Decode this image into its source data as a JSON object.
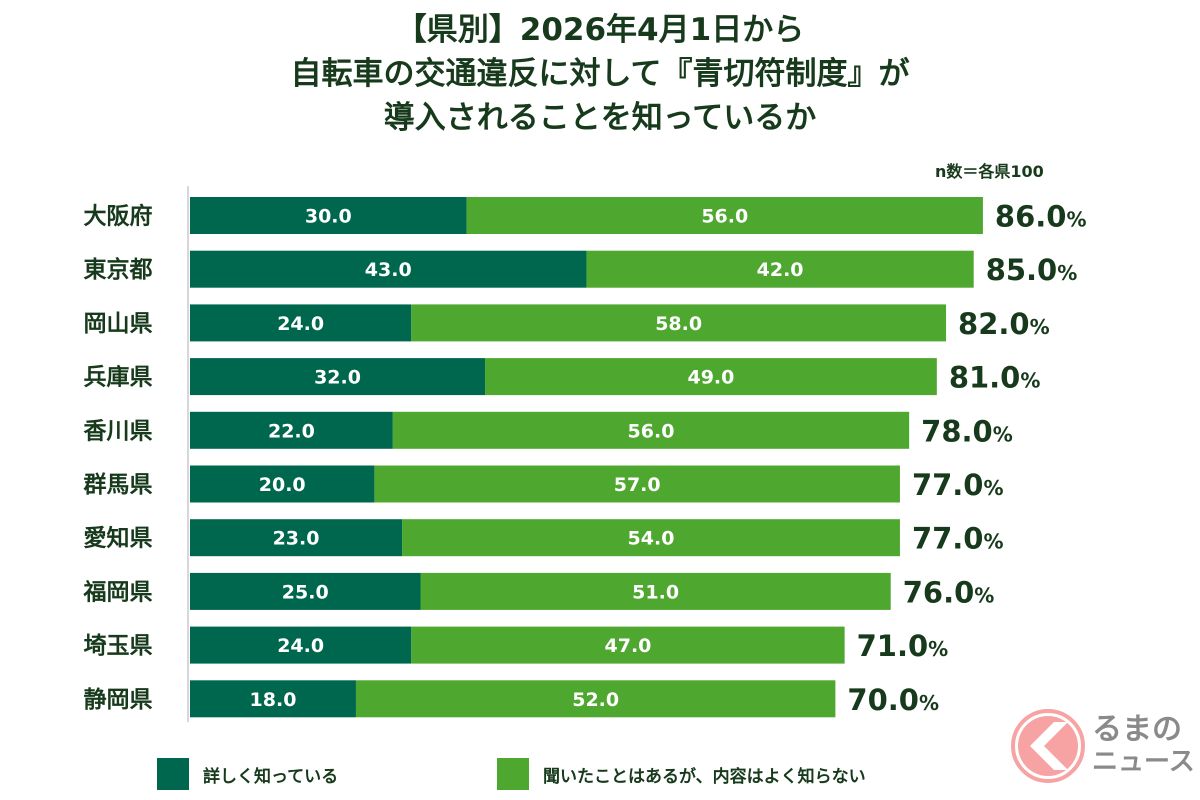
{
  "chart_data": {
    "type": "bar",
    "orientation": "horizontal",
    "stacked": true,
    "title": [
      "【県別】2026年4月1日から",
      "自転車の交通違反に対して『青切符制度』が",
      "導入されることを知っているか"
    ],
    "note": "n数＝各県100",
    "categories": [
      "大阪府",
      "東京都",
      "岡山県",
      "兵庫県",
      "香川県",
      "群馬県",
      "愛知県",
      "福岡県",
      "埼玉県",
      "静岡県"
    ],
    "series": [
      {
        "name": "詳しく知っている",
        "color": "#00674f",
        "values": [
          30.0,
          43.0,
          24.0,
          32.0,
          22.0,
          20.0,
          23.0,
          25.0,
          24.0,
          18.0
        ]
      },
      {
        "name": "聞いたことはあるが、内容はよく知らない",
        "color": "#4ea72e",
        "values": [
          56.0,
          42.0,
          58.0,
          49.0,
          56.0,
          57.0,
          54.0,
          51.0,
          47.0,
          52.0
        ]
      }
    ],
    "totals": [
      "86.0",
      "85.0",
      "82.0",
      "81.0",
      "78.0",
      "77.0",
      "77.0",
      "76.0",
      "71.0",
      "70.0"
    ],
    "total_unit": "%",
    "xlim": [
      0,
      100
    ],
    "grid": false,
    "legend_position": "bottom"
  },
  "logo": {
    "line1": "るまの",
    "line2": "ニュース",
    "color": "#f59a9a"
  }
}
